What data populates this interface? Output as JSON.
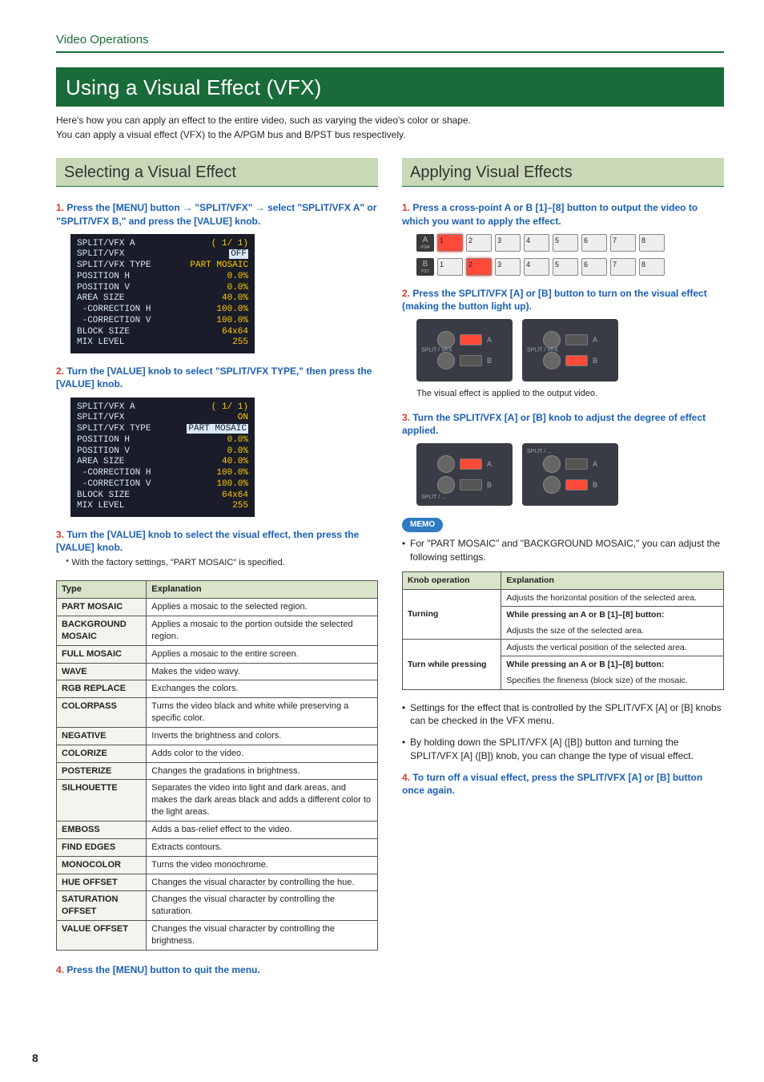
{
  "header": "Video Operations",
  "page_number": "8",
  "main_title": "Using a Visual Effect (VFX)",
  "intro_line1": "Here's how you can apply an effect to the entire video, such as varying the video's color or shape.",
  "intro_line2": "You can apply a visual effect (VFX) to the A/PGM bus and B/PST bus respectively.",
  "left": {
    "section_title": "Selecting a Visual Effect",
    "step1_num": "1.",
    "step1a": "Press the [MENU] button ",
    "step1arrow": "→",
    "step1b": " \"SPLIT/VFX\" ",
    "step1c": " select \"SPLIT/VFX A\" or \"SPLIT/VFX B,\" and press the [VALUE] knob.",
    "step2_num": "2.",
    "step2": "Turn the [VALUE] knob to select \"SPLIT/VFX TYPE,\" then press the [VALUE] knob.",
    "step3_num": "3.",
    "step3": "Turn the [VALUE] knob to select the visual effect, then press the [VALUE] knob.",
    "step3_note": "* With the factory settings, \"PART MOSAIC\" is specified.",
    "table_hdr_type": "Type",
    "table_hdr_expl": "Explanation",
    "types": [
      {
        "t": "PART MOSAIC",
        "e": "Applies a mosaic to the selected region."
      },
      {
        "t": "BACKGROUND MOSAIC",
        "e": "Applies a mosaic to the portion outside the selected region."
      },
      {
        "t": "FULL MOSAIC",
        "e": "Applies a mosaic to the entire screen."
      },
      {
        "t": "WAVE",
        "e": "Makes the video wavy."
      },
      {
        "t": "RGB REPLACE",
        "e": "Exchanges the colors."
      },
      {
        "t": "COLORPASS",
        "e": "Turns the video black and white while preserving a specific color."
      },
      {
        "t": "NEGATIVE",
        "e": "Inverts the brightness and colors."
      },
      {
        "t": "COLORIZE",
        "e": "Adds color to the video."
      },
      {
        "t": "POSTERIZE",
        "e": "Changes the gradations in brightness."
      },
      {
        "t": "SILHOUETTE",
        "e": "Separates the video into light and dark areas, and makes the dark areas black and adds a different color to the light areas."
      },
      {
        "t": "EMBOSS",
        "e": "Adds a bas-relief effect to the video."
      },
      {
        "t": "FIND EDGES",
        "e": "Extracts contours."
      },
      {
        "t": "MONOCOLOR",
        "e": "Turns the video monochrome."
      },
      {
        "t": "HUE OFFSET",
        "e": "Changes the visual character by controlling the hue."
      },
      {
        "t": "SATURATION OFFSET",
        "e": "Changes the visual character by controlling the saturation."
      },
      {
        "t": "VALUE OFFSET",
        "e": "Changes the visual character by controlling the brightness."
      }
    ],
    "step4_num": "4.",
    "step4": "Press the [MENU] button to quit the menu.",
    "lcd1": {
      "title": "SPLIT/VFX A",
      "page": "( 1/ 1)",
      "rows": [
        [
          "SPLIT/VFX",
          "OFF",
          true
        ],
        [
          "SPLIT/VFX TYPE",
          "PART MOSAIC",
          false
        ],
        [
          "POSITION H",
          "0.0%",
          false
        ],
        [
          "POSITION V",
          "0.0%",
          false
        ],
        [
          "AREA SIZE",
          "40.0%",
          false
        ],
        [
          " -CORRECTION H",
          "100.0%",
          false
        ],
        [
          " -CORRECTION V",
          "100.0%",
          false
        ],
        [
          "BLOCK SIZE",
          "64x64",
          false
        ],
        [
          "MIX LEVEL",
          "255",
          false
        ]
      ]
    },
    "lcd2": {
      "title": "SPLIT/VFX A",
      "page": "( 1/ 1)",
      "rows": [
        [
          "SPLIT/VFX",
          "ON",
          false
        ],
        [
          "SPLIT/VFX TYPE",
          "PART MOSAIC",
          true
        ],
        [
          "POSITION H",
          "0.0%",
          false
        ],
        [
          "POSITION V",
          "0.0%",
          false
        ],
        [
          "AREA SIZE",
          "40.0%",
          false
        ],
        [
          " -CORRECTION H",
          "100.0%",
          false
        ],
        [
          " -CORRECTION V",
          "100.0%",
          false
        ],
        [
          "BLOCK SIZE",
          "64x64",
          false
        ],
        [
          "MIX LEVEL",
          "255",
          false
        ]
      ]
    }
  },
  "right": {
    "section_title": "Applying Visual Effects",
    "step1_num": "1.",
    "step1": "Press a cross-point A or B [1]–[8] button to output the video to which you want to apply the effect.",
    "step2_num": "2.",
    "step2": "Press the SPLIT/VFX [A] or [B] button to turn on the visual effect (making the button light up).",
    "step2_caption": "The visual effect is applied to the output video.",
    "step3_num": "3.",
    "step3": "Turn the SPLIT/VFX [A] or [B] knob to adjust the degree of effect applied.",
    "memo_label": "MEMO",
    "memo1": "For \"PART MOSAIC\" and \"BACKGROUND MOSAIC,\" you can adjust the following settings.",
    "knob_hdr1": "Knob operation",
    "knob_hdr2": "Explanation",
    "knob_rows": [
      {
        "op": "Turning",
        "lines": [
          "Adjusts the horizontal position of the selected area.",
          "While pressing an A or B [1]–[8] button:",
          "Adjusts the size of the selected area."
        ]
      },
      {
        "op": "Turn while pressing",
        "lines": [
          "Adjusts the vertical position of the selected area.",
          "While pressing an A or B [1]–[8] button:",
          "Specifies the fineness (block size) of the mosaic."
        ]
      }
    ],
    "memo2": "Settings for the effect that is controlled by the SPLIT/VFX [A] or [B] knobs can be checked in the VFX menu.",
    "memo3": "By holding down the SPLIT/VFX [A] ([B]) button and turning the SPLIT/VFX [A] ([B]) knob, you can change the type of visual effect.",
    "step4_num": "4.",
    "step4": "To turn off a visual effect, press the SPLIT/VFX [A] or [B] button once again.",
    "row_labels": {
      "a": "A",
      "a_sub": "PGM",
      "b": "B",
      "b_sub": "PST"
    },
    "channels": [
      "1",
      "2",
      "3",
      "4",
      "5",
      "6",
      "7",
      "8"
    ],
    "split_label": "SPLIT / VFX"
  }
}
